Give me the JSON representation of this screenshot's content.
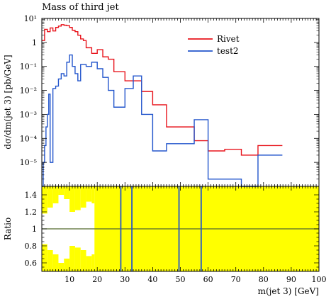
{
  "chart_data": {
    "type": "line",
    "title": "Mass of third jet",
    "ylabel": "dσ/dm(jet 3) [pb/GeV]",
    "xlabel": "m(jet 3) [GeV]",
    "ratio_ylabel": "Ratio",
    "xlim": [
      0,
      100
    ],
    "ylim": [
      1e-06,
      10
    ],
    "yscale": "log",
    "ratio_ylim": [
      0.5,
      1.5
    ],
    "x_ticks": [
      "10",
      "20",
      "30",
      "40",
      "50",
      "60",
      "70",
      "80",
      "90",
      "100"
    ],
    "y_ticks": [
      "10¹",
      "1",
      "10⁻¹",
      "10⁻²",
      "10⁻³",
      "10⁻⁴",
      "10⁻⁵"
    ],
    "ratio_ticks": [
      "0.6",
      "0.8",
      "1",
      "1.2",
      "1.4"
    ],
    "legend": {
      "position": "top-right",
      "entries": [
        "Rivet",
        "test2"
      ]
    },
    "colors": {
      "Rivet": "#e8141c",
      "test2": "#2255cc",
      "band": "#ffff00",
      "ref_line": "#556b2f"
    },
    "series": [
      {
        "name": "Rivet",
        "edges": [
          0,
          1,
          2,
          3,
          4,
          5,
          6,
          7,
          8,
          9,
          10,
          11,
          12,
          13,
          14,
          15,
          16,
          18,
          20,
          22,
          24,
          26,
          28,
          30,
          33,
          36,
          40,
          45,
          50,
          55,
          60,
          66,
          72,
          78,
          84,
          86.8
        ],
        "values": [
          1.2,
          3.5,
          2.8,
          4.0,
          3.0,
          4.2,
          4.8,
          5.5,
          5.2,
          5.0,
          4.2,
          3.2,
          2.8,
          2.0,
          1.4,
          1.2,
          0.6,
          0.35,
          0.5,
          0.25,
          0.2,
          0.06,
          0.06,
          0.025,
          0.025,
          0.009,
          0.0025,
          0.0003,
          0.0003,
          8e-05,
          3e-05,
          3.5e-05,
          2e-05,
          5e-05,
          5e-05
        ]
      },
      {
        "name": "test2",
        "edges": [
          0,
          0.5,
          1,
          1.5,
          2,
          2.5,
          3,
          4,
          5,
          6,
          7,
          8,
          9,
          10,
          11,
          12,
          13,
          14,
          16,
          18,
          20,
          22,
          24,
          26,
          28,
          30,
          33,
          36,
          40,
          45,
          50,
          55,
          60,
          66,
          72,
          78,
          84,
          86.8
        ],
        "values": [
          1e-06,
          1e-05,
          5e-05,
          0.0003,
          0.001,
          0.007,
          1e-05,
          0.012,
          0.015,
          0.03,
          0.05,
          0.04,
          0.15,
          0.3,
          0.1,
          0.05,
          0.025,
          0.12,
          0.1,
          0.15,
          0.08,
          0.035,
          0.01,
          0.002,
          0.002,
          0.012,
          0.04,
          0.001,
          3e-05,
          6e-05,
          6e-05,
          0.0006,
          2e-06,
          2e-06,
          5e-07,
          2e-05,
          2e-05
        ]
      }
    ],
    "ratio": {
      "reference": 1.0,
      "band_edges": [
        0,
        2,
        4,
        6,
        8,
        10,
        12,
        14,
        16,
        18,
        19
      ],
      "band_half_width": [
        0.18,
        0.25,
        0.3,
        0.4,
        0.35,
        0.2,
        0.22,
        0.25,
        0.32,
        0.3
      ],
      "full_band_from": 19,
      "test2_vertical_lines": [
        28.5,
        32.5,
        49.5,
        57.5
      ]
    }
  }
}
